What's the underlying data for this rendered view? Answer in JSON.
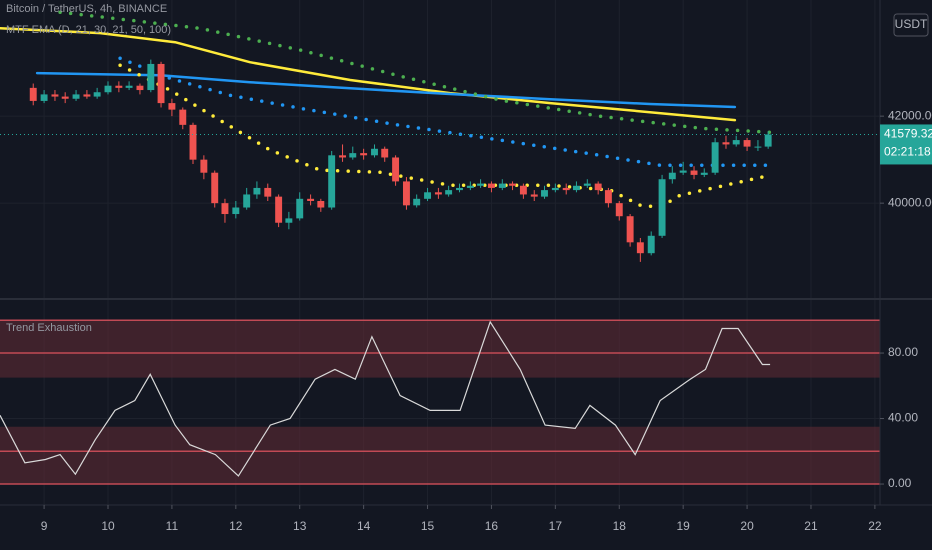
{
  "chart_data": [
    {
      "type": "candlestick",
      "title": "Bitcoin / TetherUS, 4h, BINANCE",
      "indicator": "MTF EMA (D, 21, 30, 21, 50, 100)",
      "currency": "USDT",
      "countdown": "02:21:18",
      "up_color": "#26a69a",
      "down_color": "#ef5350",
      "xlim": [
        8.31,
        22.08
      ],
      "ylim": [
        37820,
        44670
      ],
      "yticks": [
        {
          "value": 40000,
          "label": "40000.00"
        },
        {
          "value": 42000,
          "label": "42000.00"
        }
      ],
      "grid": true,
      "x": [
        8.83,
        9,
        9.17,
        9.33,
        9.5,
        9.67,
        9.83,
        10,
        10.17,
        10.33,
        10.5,
        10.67,
        10.83,
        11,
        11.17,
        11.33,
        11.5,
        11.67,
        11.83,
        12,
        12.17,
        12.33,
        12.5,
        12.67,
        12.83,
        13,
        13.17,
        13.33,
        13.5,
        13.67,
        13.83,
        14,
        14.17,
        14.33,
        14.5,
        14.67,
        14.83,
        15,
        15.17,
        15.33,
        15.5,
        15.67,
        15.83,
        16,
        16.17,
        16.33,
        16.5,
        16.67,
        16.83,
        17,
        17.17,
        17.33,
        17.5,
        17.67,
        17.83,
        18,
        18.17,
        18.33,
        18.5,
        18.67,
        18.83,
        19,
        19.17,
        19.33,
        19.5,
        19.67,
        19.83,
        20,
        20.17,
        20.33
      ],
      "open": [
        42650,
        42350,
        42500,
        42450,
        42400,
        42500,
        42450,
        42550,
        42700,
        42650,
        42700,
        42600,
        43200,
        42300,
        42150,
        41800,
        41000,
        40700,
        40000,
        39750,
        39900,
        40200,
        40350,
        40150,
        39550,
        39650,
        40100,
        40050,
        39900,
        41100,
        41050,
        41150,
        41100,
        41250,
        41050,
        40500,
        39950,
        40100,
        40250,
        40200,
        40300,
        40350,
        40400,
        40450,
        40350,
        40450,
        40400,
        40200,
        40150,
        40300,
        40350,
        40300,
        40400,
        40450,
        40300,
        40000,
        39700,
        39100,
        38850,
        39250,
        40550,
        40700,
        40750,
        40650,
        40700,
        41400,
        41350,
        41450,
        41300,
        41300
      ],
      "high": [
        42750,
        42600,
        42600,
        42550,
        42600,
        42600,
        42650,
        42800,
        42800,
        42800,
        42750,
        43300,
        43250,
        42400,
        42200,
        41850,
        41100,
        40750,
        40100,
        40050,
        40350,
        40500,
        40450,
        40200,
        39800,
        40250,
        40200,
        40100,
        41200,
        41350,
        41300,
        41250,
        41350,
        41300,
        41100,
        40600,
        40200,
        40350,
        40350,
        40400,
        40450,
        40500,
        40550,
        40500,
        40550,
        40500,
        40450,
        40300,
        40400,
        40450,
        40450,
        40500,
        40550,
        40500,
        40350,
        40050,
        39750,
        39200,
        39350,
        40650,
        40850,
        40950,
        40850,
        40800,
        41500,
        41550,
        41550,
        41500,
        41450,
        41650
      ],
      "low": [
        42250,
        42300,
        42350,
        42300,
        42350,
        42400,
        42400,
        42500,
        42550,
        42600,
        42500,
        42550,
        42200,
        42000,
        41700,
        40900,
        40550,
        39900,
        39550,
        39650,
        39850,
        40100,
        40050,
        39450,
        39400,
        39600,
        39950,
        39800,
        39850,
        40950,
        41000,
        41000,
        41050,
        40950,
        40400,
        39850,
        39900,
        40050,
        40100,
        40150,
        40250,
        40300,
        40350,
        40250,
        40300,
        40300,
        40100,
        40050,
        40100,
        40250,
        40200,
        40250,
        40350,
        40200,
        39900,
        39600,
        39000,
        38650,
        38800,
        39200,
        40450,
        40650,
        40550,
        40600,
        40650,
        41250,
        41300,
        41200,
        41200,
        41250
      ],
      "close": [
        42350,
        42500,
        42450,
        42400,
        42500,
        42450,
        42550,
        42700,
        42650,
        42700,
        42600,
        43200,
        42300,
        42150,
        41800,
        41000,
        40700,
        40000,
        39750,
        39900,
        40200,
        40350,
        40150,
        39550,
        39650,
        40100,
        40050,
        39900,
        41100,
        41050,
        41150,
        41100,
        41250,
        41050,
        40500,
        39950,
        40100,
        40250,
        40200,
        40300,
        40350,
        40400,
        40450,
        40350,
        40450,
        40400,
        40200,
        40150,
        40300,
        40350,
        40300,
        40400,
        40450,
        40300,
        40000,
        39700,
        39100,
        38850,
        39250,
        40550,
        40700,
        40750,
        40650,
        40700,
        41400,
        41350,
        41450,
        41300,
        41300,
        41579.32
      ],
      "series": [
        {
          "color": "#ffeb3b",
          "style": "line",
          "x": [
            8.31,
            9.88,
            11.05,
            12.22,
            13.79,
            15.35,
            16.92,
            18.48,
            19.81
          ],
          "values": [
            44020,
            43910,
            43700,
            43240,
            42830,
            42530,
            42300,
            42090,
            41910
          ]
        },
        {
          "color": "#2196f3",
          "style": "line",
          "x": [
            8.89,
            10.82,
            12.22,
            13.79,
            15.35,
            16.92,
            18.48,
            19.81
          ],
          "values": [
            42990,
            42940,
            42780,
            42640,
            42510,
            42390,
            42280,
            42210
          ]
        },
        {
          "color": "#4caf50",
          "style": "dots",
          "x": [
            9.25,
            11.44,
            13.01,
            14.57,
            16.14,
            17.7,
            19.27,
            20.36
          ],
          "values": [
            44390,
            44020,
            43520,
            42920,
            42370,
            42000,
            41720,
            41630
          ]
        },
        {
          "color": "#2196f3",
          "style": "dots",
          "x": [
            10.19,
            10.97,
            11.91,
            13.01,
            14.57,
            16.14,
            17.7,
            18.64,
            20.36
          ],
          "values": [
            43330,
            42870,
            42480,
            42180,
            41790,
            41450,
            41100,
            40870,
            40870
          ]
        },
        {
          "color": "#ffeb3b",
          "style": "dots",
          "x": [
            10.19,
            10.97,
            11.75,
            12.54,
            13.32,
            14.26,
            15.35,
            16.92,
            17.86,
            18.33,
            18.64,
            18.95,
            20.36
          ],
          "values": [
            43170,
            42600,
            41910,
            41220,
            40760,
            40710,
            40410,
            40410,
            40300,
            39950,
            39910,
            40180,
            40640
          ]
        }
      ]
    },
    {
      "type": "line",
      "title": "Trend Exhaustion",
      "xlim": [
        8.31,
        22.08
      ],
      "ylim": [
        -12.8,
        112.4
      ],
      "yticks": [
        {
          "value": 0,
          "label": "0.00"
        },
        {
          "value": 40,
          "label": "40.00"
        },
        {
          "value": 80,
          "label": "80.00"
        }
      ],
      "xticks": [
        9,
        10,
        11,
        12,
        13,
        14,
        15,
        16,
        17,
        18,
        19,
        20,
        21,
        22
      ],
      "grid": true,
      "bands": [
        [
          0,
          35
        ],
        [
          65,
          100
        ]
      ],
      "band_color": "#5d2a33",
      "hlines": [
        0,
        20,
        80,
        100
      ],
      "hline_color": "#c24a55",
      "series": [
        {
          "color": "#d9d9d9",
          "x": [
            8.31,
            8.7,
            9.02,
            9.25,
            9.49,
            9.8,
            10.11,
            10.42,
            10.66,
            11.05,
            11.28,
            11.68,
            12.04,
            12.54,
            12.85,
            13.24,
            13.55,
            13.87,
            14.13,
            14.57,
            15.04,
            15.51,
            15.98,
            16.45,
            16.84,
            17.31,
            17.54,
            17.94,
            18.25,
            18.64,
            19.11,
            19.35,
            19.61,
            19.86,
            20.24,
            20.36
          ],
          "values": [
            42,
            13,
            15,
            18,
            6,
            27,
            45,
            51,
            67,
            36,
            24,
            18,
            5,
            36,
            40,
            64,
            70,
            64,
            90,
            54,
            45,
            45,
            99,
            70,
            36,
            34,
            48,
            36,
            18,
            51,
            64,
            70,
            95,
            95,
            73,
            73
          ]
        }
      ]
    }
  ]
}
